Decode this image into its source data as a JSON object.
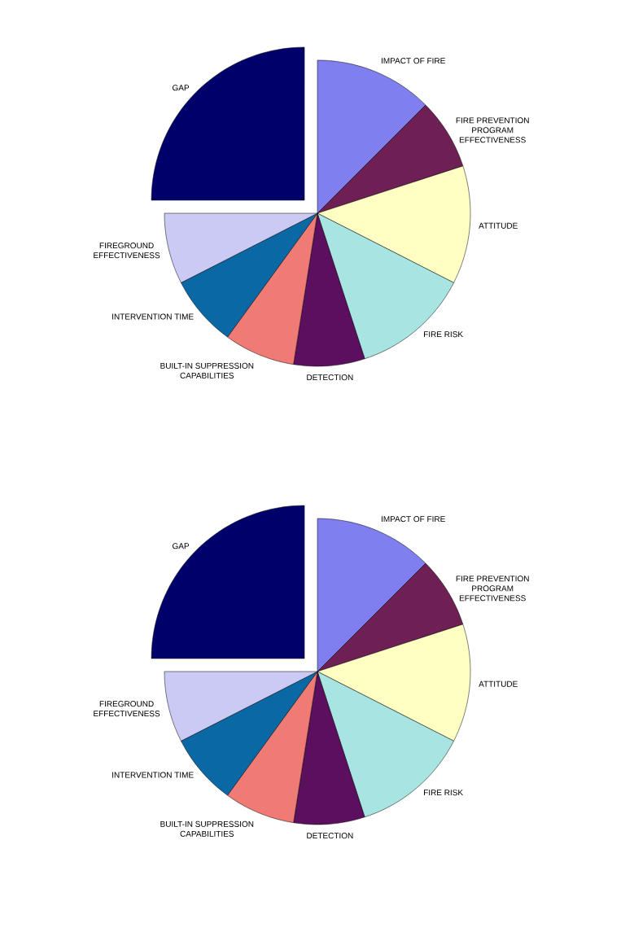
{
  "chart_data": [
    {
      "type": "pie",
      "categories": [
        "IMPACT OF FIRE",
        "FIRE PREVENTION PROGRAM EFFECTIVENESS",
        "ATTITUDE",
        "FIRE RISK",
        "DETECTION",
        "BUILT-IN SUPPRESSION CAPABILITIES",
        "INTERVENTION TIME",
        "FIREGROUND EFFECTIVENESS",
        "GAP"
      ],
      "values": [
        12.5,
        7.5,
        12.5,
        12.5,
        7.5,
        7.5,
        7.5,
        7.5,
        25
      ],
      "colors": [
        "#7f7ff0",
        "#6e1f54",
        "#ffffc4",
        "#a8e4e2",
        "#5c0f5e",
        "#f07a74",
        "#0a68a5",
        "#cacaf5",
        "#00006a"
      ]
    },
    {
      "type": "pie",
      "categories": [
        "IMPACT OF FIRE",
        "FIRE PREVENTION PROGRAM EFFECTIVENESS",
        "ATTITUDE",
        "FIRE RISK",
        "DETECTION",
        "BUILT-IN SUPPRESSION CAPABILITIES",
        "INTERVENTION TIME",
        "FIREGROUND EFFECTIVENESS",
        "GAP"
      ],
      "values": [
        12.5,
        7.5,
        12.5,
        12.5,
        7.5,
        7.5,
        7.5,
        7.5,
        25
      ],
      "colors": [
        "#7f7ff0",
        "#6e1f54",
        "#ffffc4",
        "#a8e4e2",
        "#5c0f5e",
        "#f07a74",
        "#0a68a5",
        "#cacaf5",
        "#00006a"
      ]
    }
  ]
}
